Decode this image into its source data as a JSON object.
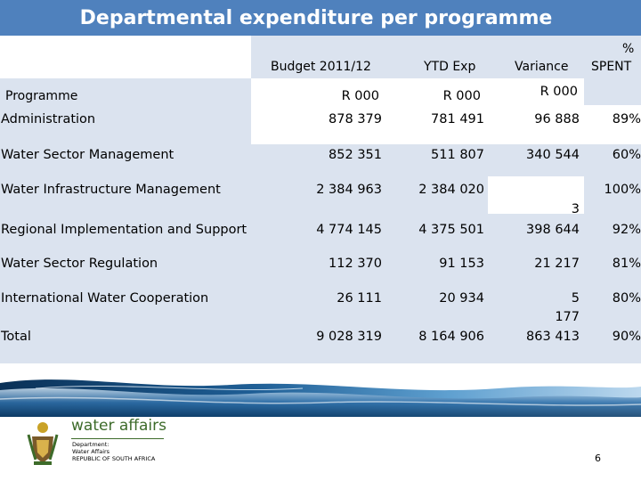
{
  "slide": {
    "title": "Departmental expenditure per programme",
    "page_number": "6"
  },
  "table": {
    "headers": {
      "programme": "Programme",
      "budget": "Budget 2011/12",
      "ytd": "YTD Exp",
      "variance": "Variance",
      "pct_line1": "%",
      "pct_line2": "SPENT",
      "unit_budget": "R 000",
      "unit_ytd": "R 000",
      "unit_variance": "R 000"
    },
    "rows": [
      {
        "programme": "Administration",
        "budget": "878 379",
        "ytd": "781 491",
        "variance": "96 888",
        "pct": "89%"
      },
      {
        "programme": "Water Sector Management",
        "budget": "852 351",
        "ytd": "511 807",
        "variance": "340 544",
        "pct": "60%"
      },
      {
        "programme": "Water Infrastructure Management",
        "budget": "2 384 963",
        "ytd": "2 384 020",
        "variance": "",
        "pct": "100%"
      },
      {
        "programme": "Regional Implementation and Support",
        "budget": "4 774 145",
        "ytd": "4 375 501",
        "variance_l1": "3",
        "variance_l2": "398 644",
        "pct": "92%"
      },
      {
        "programme": "Water Sector Regulation",
        "budget": "112 370",
        "ytd": "91 153",
        "variance": "21 217",
        "pct": "81%"
      },
      {
        "programme": "International Water Cooperation",
        "budget": "26 111",
        "ytd": "20 934",
        "variance_l1": "5",
        "variance_l2": "177",
        "pct": "80%"
      },
      {
        "programme": "Total",
        "budget": "9 028 319",
        "ytd": "8 164 906",
        "variance": "863 413",
        "pct": "90%"
      }
    ]
  },
  "logo": {
    "brand": "water affairs",
    "line1": "Department:",
    "line2": "Water Affairs",
    "line3": "REPUBLIC OF SOUTH AFRICA"
  },
  "colors": {
    "title_bar": "#4f81bd",
    "table_bg": "#dbe3ef",
    "brand_green": "#3d6b2a"
  }
}
